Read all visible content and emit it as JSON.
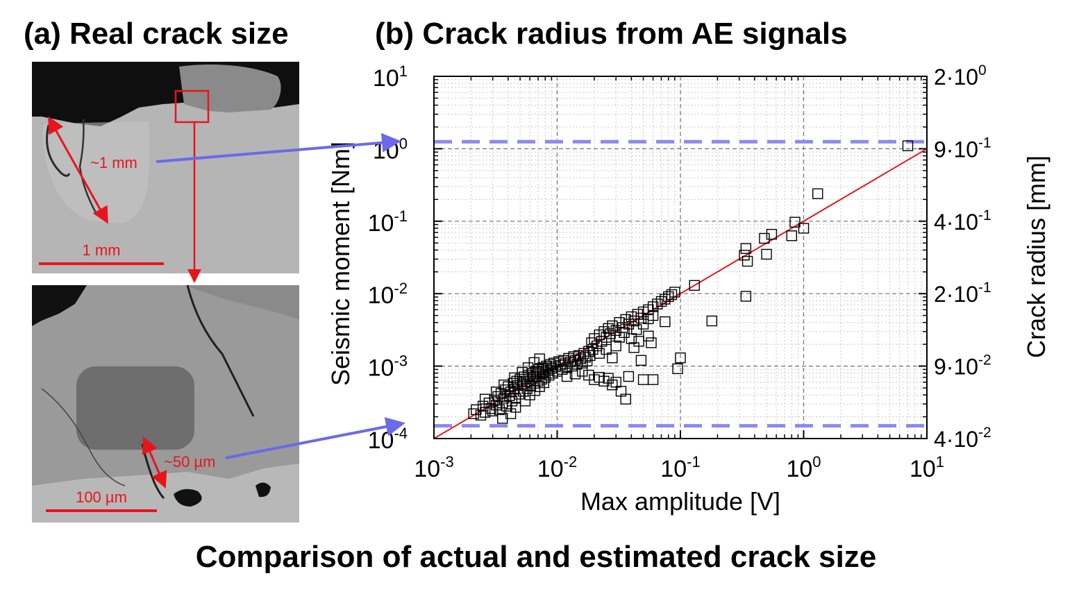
{
  "figure": {
    "panel_a_title": "(a) Real crack size",
    "panel_b_title": "(b) Crack radius from AE signals",
    "caption": "Comparison of actual and estimated crack size",
    "micrograph_top": {
      "crack_label": "~1 mm",
      "scale_label": "1 mm"
    },
    "micrograph_bottom": {
      "crack_label": "~50 µm",
      "scale_label": "100 µm"
    },
    "colors": {
      "annotation_red": "#e8141c",
      "arrow_blue": "#6a6aea",
      "fit_line": "#e8141c",
      "reference_dash": "#8a8af0",
      "marker": "#000000"
    }
  },
  "chart_data": {
    "type": "scatter",
    "xlabel": "Max amplitude [V]",
    "ylabel": "Seismic moment [Nm]",
    "y2label": "Crack radius [mm]",
    "x_scale": "log",
    "y_scale": "log",
    "xlim": [
      0.001,
      10
    ],
    "ylim": [
      0.0001,
      10
    ],
    "x_ticks": [
      {
        "base": "10",
        "exp": "-3",
        "value": 0.001
      },
      {
        "base": "10",
        "exp": "-2",
        "value": 0.01
      },
      {
        "base": "10",
        "exp": "-1",
        "value": 0.1
      },
      {
        "base": "10",
        "exp": "0",
        "value": 1
      },
      {
        "base": "10",
        "exp": "1",
        "value": 10
      }
    ],
    "y_ticks": [
      {
        "base": "10",
        "exp": "-4",
        "value": 0.0001
      },
      {
        "base": "10",
        "exp": "-3",
        "value": 0.001
      },
      {
        "base": "10",
        "exp": "-2",
        "value": 0.01
      },
      {
        "base": "10",
        "exp": "-1",
        "value": 0.1
      },
      {
        "base": "10",
        "exp": "0",
        "value": 1
      },
      {
        "base": "10",
        "exp": "1",
        "value": 10
      }
    ],
    "y2_ticks": [
      {
        "mant": "4·10",
        "exp": "-2",
        "moment": 0.0001
      },
      {
        "mant": "9·10",
        "exp": "-2",
        "moment": 0.001
      },
      {
        "mant": "2·10",
        "exp": "-1",
        "moment": 0.01
      },
      {
        "mant": "4·10",
        "exp": "-1",
        "moment": 0.1
      },
      {
        "mant": "9·10",
        "exp": "-1",
        "moment": 1
      },
      {
        "mant": "2·10",
        "exp": "0",
        "moment": 10
      }
    ],
    "grid": true,
    "fit_line": {
      "x": [
        0.001,
        10
      ],
      "y": [
        0.0001,
        1
      ]
    },
    "reference_lines": [
      1.25,
      0.00015
    ],
    "points": [
      [
        0.0021,
        0.00022
      ],
      [
        0.0022,
        0.00025
      ],
      [
        0.0024,
        0.00021
      ],
      [
        0.0025,
        0.00028
      ],
      [
        0.0026,
        0.00023
      ],
      [
        0.0028,
        0.00031
      ],
      [
        0.0029,
        0.00026
      ],
      [
        0.003,
        0.00024
      ],
      [
        0.0031,
        0.00034
      ],
      [
        0.0032,
        0.00029
      ],
      [
        0.0033,
        0.00038
      ],
      [
        0.0034,
        0.00025
      ],
      [
        0.0035,
        0.00042
      ],
      [
        0.0036,
        0.00031
      ],
      [
        0.0037,
        0.00036
      ],
      [
        0.0038,
        0.00047
      ],
      [
        0.0039,
        0.00028
      ],
      [
        0.004,
        0.00052
      ],
      [
        0.0041,
        0.00039
      ],
      [
        0.0042,
        0.00044
      ],
      [
        0.0043,
        0.00033
      ],
      [
        0.0044,
        0.00058
      ],
      [
        0.0045,
        0.00048
      ],
      [
        0.0046,
        0.00036
      ],
      [
        0.0047,
        0.00062
      ],
      [
        0.0048,
        0.00054
      ],
      [
        0.0049,
        0.00041
      ],
      [
        0.005,
        0.00066
      ],
      [
        0.0052,
        0.00057
      ],
      [
        0.0053,
        0.00045
      ],
      [
        0.0054,
        0.00071
      ],
      [
        0.0056,
        0.00061
      ],
      [
        0.0057,
        0.00049
      ],
      [
        0.0058,
        0.00075
      ],
      [
        0.006,
        0.00066
      ],
      [
        0.0061,
        0.00053
      ],
      [
        0.0063,
        0.00079
      ],
      [
        0.0064,
        0.0007
      ],
      [
        0.0065,
        0.00058
      ],
      [
        0.0067,
        0.00085
      ],
      [
        0.0068,
        0.00073
      ],
      [
        0.007,
        0.00062
      ],
      [
        0.0071,
        0.0009
      ],
      [
        0.0073,
        0.00078
      ],
      [
        0.0075,
        0.00066
      ],
      [
        0.0076,
        0.00095
      ],
      [
        0.0078,
        0.00083
      ],
      [
        0.008,
        0.0007
      ],
      [
        0.0082,
        0.001
      ],
      [
        0.0084,
        0.00088
      ],
      [
        0.0086,
        0.00075
      ],
      [
        0.0088,
        0.00105
      ],
      [
        0.009,
        0.00093
      ],
      [
        0.0092,
        0.0008
      ],
      [
        0.0094,
        0.0011
      ],
      [
        0.0097,
        0.00098
      ],
      [
        0.01,
        0.00085
      ],
      [
        0.0103,
        0.00115
      ],
      [
        0.0106,
        0.00103
      ],
      [
        0.011,
        0.0009
      ],
      [
        0.0113,
        0.0012
      ],
      [
        0.0116,
        0.00108
      ],
      [
        0.012,
        0.00095
      ],
      [
        0.0124,
        0.00128
      ],
      [
        0.0128,
        0.00114
      ],
      [
        0.0132,
        0.001
      ],
      [
        0.0136,
        0.00135
      ],
      [
        0.014,
        0.0012
      ],
      [
        0.0145,
        0.00106
      ],
      [
        0.015,
        0.0014
      ],
      [
        0.0155,
        0.00126
      ],
      [
        0.016,
        0.0011
      ],
      [
        0.0165,
        0.0015
      ],
      [
        0.017,
        0.00133
      ],
      [
        0.0175,
        0.00118
      ],
      [
        0.018,
        0.0016
      ],
      [
        0.0185,
        0.0014
      ],
      [
        0.019,
        0.0021
      ],
      [
        0.0195,
        0.0017
      ],
      [
        0.02,
        0.0024
      ],
      [
        0.021,
        0.0019
      ],
      [
        0.022,
        0.0027
      ],
      [
        0.023,
        0.0022
      ],
      [
        0.024,
        0.003
      ],
      [
        0.025,
        0.0025
      ],
      [
        0.026,
        0.0033
      ],
      [
        0.027,
        0.0028
      ],
      [
        0.028,
        0.0036
      ],
      [
        0.03,
        0.0031
      ],
      [
        0.032,
        0.004
      ],
      [
        0.034,
        0.0034
      ],
      [
        0.036,
        0.0044
      ],
      [
        0.038,
        0.0038
      ],
      [
        0.04,
        0.0048
      ],
      [
        0.042,
        0.0042
      ],
      [
        0.045,
        0.0052
      ],
      [
        0.048,
        0.0046
      ],
      [
        0.05,
        0.0056
      ],
      [
        0.055,
        0.006
      ],
      [
        0.06,
        0.0066
      ],
      [
        0.065,
        0.0072
      ],
      [
        0.07,
        0.0078
      ],
      [
        0.075,
        0.0084
      ],
      [
        0.08,
        0.0091
      ],
      [
        0.085,
        0.0097
      ],
      [
        0.09,
        0.0105
      ],
      [
        0.0036,
        0.00019
      ],
      [
        0.0042,
        0.00022
      ],
      [
        0.0046,
        0.00027
      ],
      [
        0.0055,
        0.00033
      ],
      [
        0.006,
        0.0004
      ],
      [
        0.0066,
        0.00046
      ],
      [
        0.0072,
        0.00052
      ],
      [
        0.0078,
        0.00059
      ],
      [
        0.0026,
        0.00035
      ],
      [
        0.0032,
        0.00044
      ],
      [
        0.0037,
        0.00055
      ],
      [
        0.0045,
        0.00069
      ],
      [
        0.0052,
        0.00082
      ],
      [
        0.0058,
        0.00095
      ],
      [
        0.0065,
        0.00112
      ],
      [
        0.0072,
        0.00126
      ],
      [
        0.012,
        0.00072
      ],
      [
        0.014,
        0.00078
      ],
      [
        0.016,
        0.00085
      ],
      [
        0.018,
        0.00075
      ],
      [
        0.02,
        0.00065
      ],
      [
        0.022,
        0.0007
      ],
      [
        0.024,
        0.00062
      ],
      [
        0.026,
        0.00068
      ],
      [
        0.028,
        0.00055
      ],
      [
        0.03,
        0.0006
      ],
      [
        0.033,
        0.00045
      ],
      [
        0.036,
        0.00035
      ],
      [
        0.038,
        0.00072
      ],
      [
        0.042,
        0.0018
      ],
      [
        0.046,
        0.0022
      ],
      [
        0.048,
        0.0012
      ],
      [
        0.05,
        0.00065
      ],
      [
        0.055,
        0.0026
      ],
      [
        0.058,
        0.0021
      ],
      [
        0.06,
        0.00065
      ],
      [
        0.022,
        0.0015
      ],
      [
        0.025,
        0.0017
      ],
      [
        0.028,
        0.0013
      ],
      [
        0.03,
        0.0019
      ],
      [
        0.032,
        0.0025
      ],
      [
        0.035,
        0.0029
      ],
      [
        0.04,
        0.0024
      ],
      [
        0.044,
        0.0032
      ],
      [
        0.05,
        0.0038
      ],
      [
        0.055,
        0.0045
      ],
      [
        0.06,
        0.005
      ],
      [
        0.075,
        0.0041
      ],
      [
        0.095,
        0.00092
      ],
      [
        0.1,
        0.0013
      ],
      [
        0.13,
        0.013
      ],
      [
        0.18,
        0.0042
      ],
      [
        0.33,
        0.034
      ],
      [
        0.34,
        0.0092
      ],
      [
        0.34,
        0.042
      ],
      [
        0.35,
        0.028
      ],
      [
        0.48,
        0.058
      ],
      [
        0.5,
        0.035
      ],
      [
        0.55,
        0.066
      ],
      [
        0.8,
        0.063
      ],
      [
        0.85,
        0.097
      ],
      [
        1.0,
        0.08
      ],
      [
        1.3,
        0.24
      ],
      [
        7.0,
        1.1
      ]
    ]
  }
}
